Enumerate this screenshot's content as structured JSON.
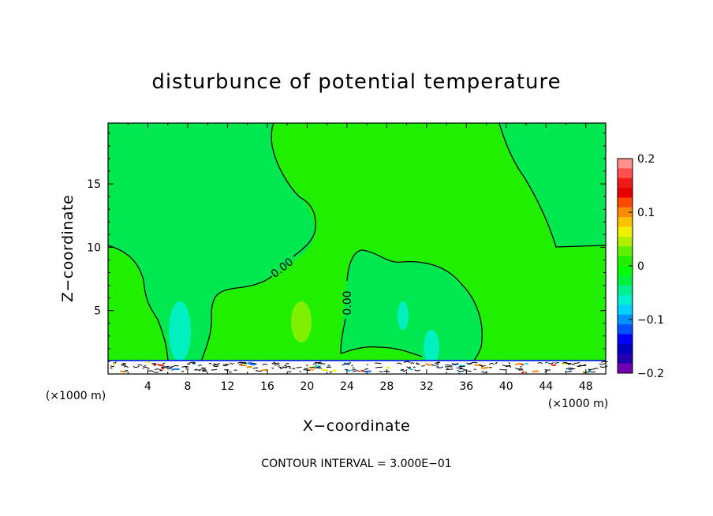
{
  "chart_data": {
    "type": "contour",
    "title": "disturbunce of potential temperature",
    "xlabel": "X−coordinate",
    "ylabel": "Z−coordinate",
    "x_unit_left": "(×1000 m)",
    "x_unit_right": "(×1000 m)",
    "xlim": [
      0,
      50
    ],
    "ylim": [
      0,
      19.8
    ],
    "x_ticks": [
      4,
      8,
      12,
      16,
      20,
      24,
      28,
      32,
      36,
      40,
      44,
      48
    ],
    "y_ticks": [
      5,
      10,
      15
    ],
    "contour_interval_text": "CONTOUR INTERVAL = 3.000E−01",
    "contour_labels": [
      "0.00",
      "0.00"
    ],
    "background_value": 0.0,
    "colorbar": {
      "min": -0.2,
      "max": 0.2,
      "ticks": [
        0.2,
        0.1,
        0,
        -0.1,
        -0.2
      ],
      "tick_labels": [
        "0.2",
        "0.1",
        "0",
        "−0.1",
        "−0.2"
      ],
      "colors": [
        "#ff9090",
        "#ff5050",
        "#f01818",
        "#e80000",
        "#ff4a00",
        "#ff8c00",
        "#ffc000",
        "#f0f000",
        "#b0f000",
        "#60f000",
        "#20f000",
        "#00ff00",
        "#00f040",
        "#00f090",
        "#00f0d0",
        "#00d0ff",
        "#0090ff",
        "#0050ff",
        "#0000ff",
        "#0000c0",
        "#2000b0",
        "#7000b0"
      ]
    },
    "field_colors": {
      "positive_side": "#20f000",
      "negative_side": "#00e850",
      "cool_blob": "#00f0c0",
      "warm_blob": "#80f000"
    }
  }
}
